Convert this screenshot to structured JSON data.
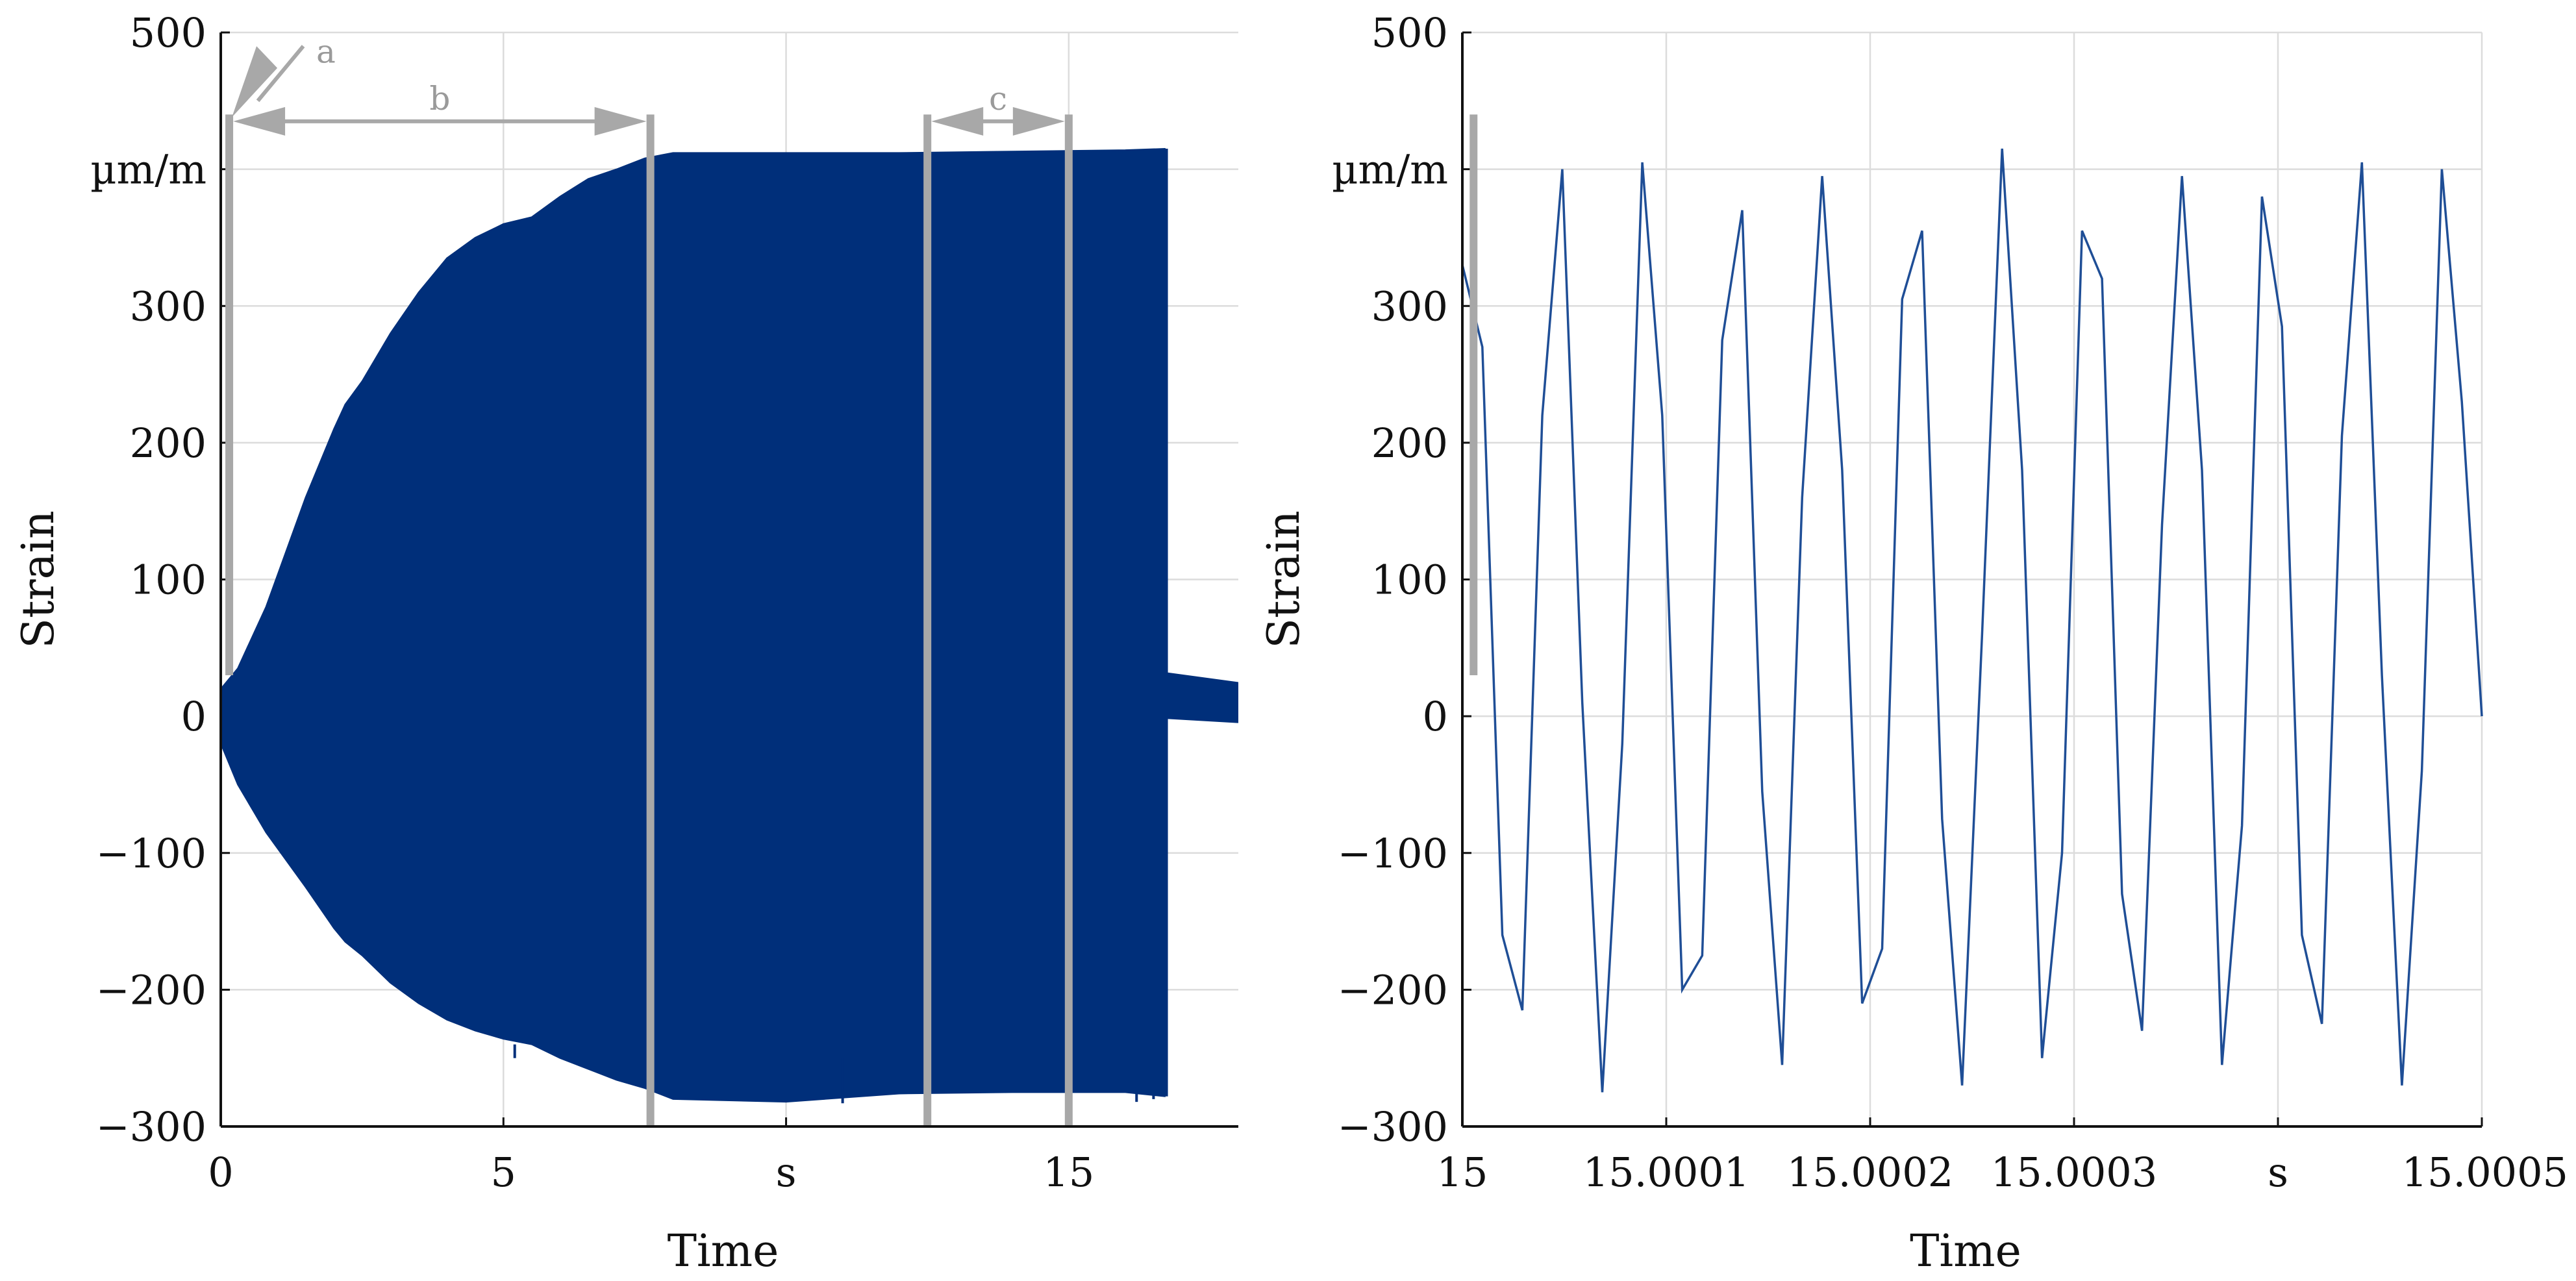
{
  "charts": [
    {
      "type": "area",
      "xlabel": "Time",
      "ylabel": "Strain",
      "x_unit": "s",
      "y_unit": "µm/m",
      "xlim": [
        0,
        18
      ],
      "ylim": [
        -300,
        500
      ],
      "x_ticks": [
        "0",
        "5",
        "s",
        "15"
      ],
      "y_ticks": [
        "500",
        "µm/m",
        "300",
        "200",
        "100",
        "0",
        "−100",
        "−200",
        "−300"
      ],
      "grid": true,
      "series_color": "#002f7a",
      "envelope": {
        "x": [
          0,
          0.3,
          0.8,
          1.5,
          2.0,
          2.2,
          2.5,
          3.0,
          3.5,
          4.0,
          4.5,
          5.0,
          5.5,
          6.0,
          6.5,
          7.0,
          7.5,
          8.0,
          10.0,
          12.0,
          14.0,
          16.0,
          16.7
        ],
        "upper": [
          20,
          35,
          80,
          160,
          210,
          228,
          245,
          280,
          310,
          335,
          350,
          360,
          365,
          380,
          393,
          400,
          408,
          412,
          412,
          412,
          413,
          414,
          415
        ],
        "lower": [
          -20,
          -50,
          -85,
          -125,
          -155,
          -165,
          -175,
          -195,
          -210,
          -222,
          -230,
          -236,
          -240,
          -250,
          -258,
          -266,
          -272,
          -280,
          -282,
          -276,
          -275,
          -275,
          -278
        ]
      },
      "tail": {
        "x": [
          16.75,
          18.0
        ],
        "upper": [
          32,
          25
        ],
        "lower": [
          -2,
          -5
        ]
      },
      "annotations": [
        {
          "label": "a",
          "x": 0.15
        },
        {
          "label": "b",
          "x_start": 0.15,
          "x_end": 7.6
        },
        {
          "label": "c",
          "x_start": 12.5,
          "x_end": 15.0
        }
      ],
      "marker_lines_x": [
        0.15,
        7.6,
        12.5,
        15.0
      ]
    },
    {
      "type": "line",
      "xlabel": "Time",
      "ylabel": "Strain",
      "x_unit": "s",
      "y_unit": "µm/m",
      "xlim": [
        15,
        15.0005
      ],
      "ylim": [
        -300,
        500
      ],
      "x_ticks": [
        "15",
        "15.0001",
        "15.0002",
        "15.0003",
        "s",
        "15.0005"
      ],
      "y_ticks": [
        "500",
        "µm/m",
        "300",
        "200",
        "100",
        "0",
        "−100",
        "−200",
        "−300"
      ],
      "grid": true,
      "series_color": "#1f4e96",
      "points_y": [
        330,
        270,
        -160,
        -215,
        220,
        400,
        10,
        -275,
        -20,
        405,
        220,
        -200,
        -175,
        275,
        370,
        -55,
        -255,
        160,
        395,
        180,
        -210,
        -170,
        305,
        355,
        -75,
        -270,
        60,
        415,
        180,
        -250,
        -100,
        355,
        320,
        -130,
        -230,
        140,
        395,
        180,
        -255,
        -80,
        380,
        285,
        -160,
        -225,
        205,
        405,
        30,
        -270,
        -40,
        400,
        230,
        0
      ],
      "marker_line_x": 15.0000055
    }
  ]
}
